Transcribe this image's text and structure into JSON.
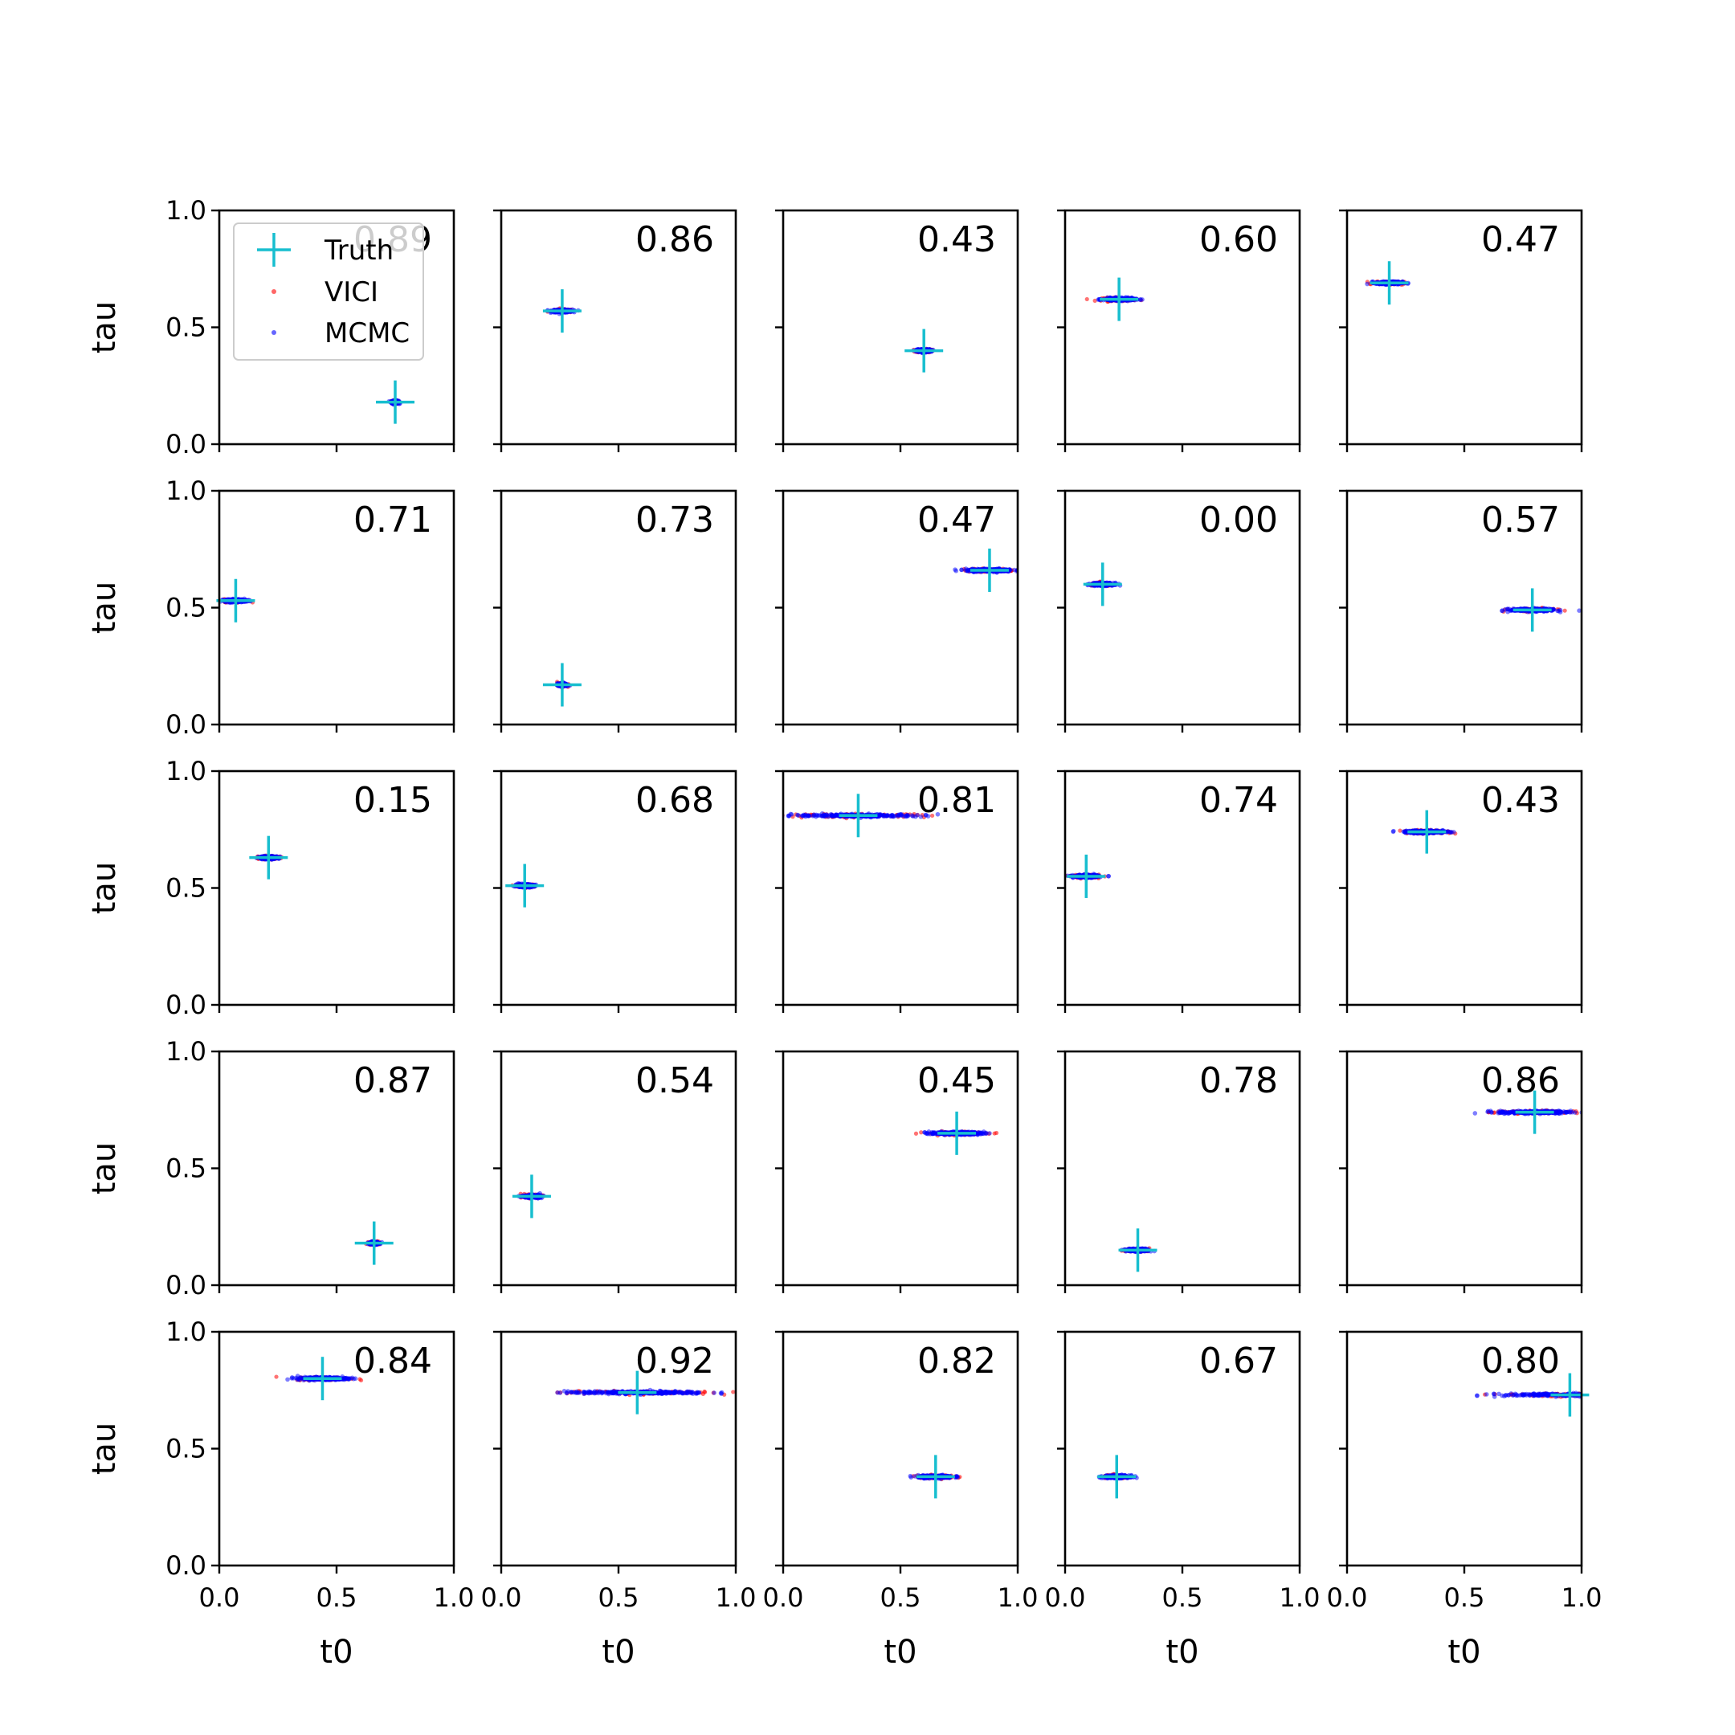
{
  "colors": {
    "truth": "#17becf",
    "vici": "#ff0000",
    "mcmc": "#0000ff",
    "axes": "#000000",
    "legend_border": "#cccccc"
  },
  "legend": {
    "placement": "upper-left of first panel",
    "entries": [
      {
        "label": "Truth",
        "marker": "plus-icon",
        "color": "#17becf"
      },
      {
        "label": "VICI",
        "marker": "dot-icon",
        "color": "#ff0000"
      },
      {
        "label": "MCMC",
        "marker": "dot-icon",
        "color": "#0000ff"
      }
    ]
  },
  "chart_data": {
    "type": "scatter",
    "layout": "5x5 grid of scatter panels",
    "xlabel": "t0",
    "ylabel": "tau",
    "xlim": [
      0,
      1
    ],
    "ylim": [
      0,
      1
    ],
    "xticks": [
      "0.0",
      "0.5",
      "1.0"
    ],
    "yticks": [
      "0.0",
      "0.5",
      "1.0"
    ],
    "grid": false,
    "series_names": [
      "Truth",
      "VICI",
      "MCMC"
    ],
    "panels": [
      {
        "score": "0.89",
        "truth": [
          0.75,
          0.18
        ],
        "spread": 0.045
      },
      {
        "score": "0.86",
        "truth": [
          0.26,
          0.57
        ],
        "spread": 0.13
      },
      {
        "score": "0.43",
        "truth": [
          0.6,
          0.4
        ],
        "spread": 0.09
      },
      {
        "score": "0.60",
        "truth": [
          0.23,
          0.62
        ],
        "spread": 0.2
      },
      {
        "score": "0.47",
        "truth": [
          0.18,
          0.69
        ],
        "spread": 0.17
      },
      {
        "score": "0.71",
        "truth": [
          0.07,
          0.53
        ],
        "spread": 0.14
      },
      {
        "score": "0.73",
        "truth": [
          0.26,
          0.17
        ],
        "spread": 0.06
      },
      {
        "score": "0.47",
        "truth": [
          0.88,
          0.66
        ],
        "spread": 0.3
      },
      {
        "score": "0.00",
        "truth": [
          0.16,
          0.6
        ],
        "spread": 0.14
      },
      {
        "score": "0.57",
        "truth": [
          0.79,
          0.49
        ],
        "spread": 0.28
      },
      {
        "score": "0.15",
        "truth": [
          0.21,
          0.63
        ],
        "spread": 0.12
      },
      {
        "score": "0.68",
        "truth": [
          0.1,
          0.51
        ],
        "spread": 0.12
      },
      {
        "score": "0.81",
        "truth": [
          0.32,
          0.81
        ],
        "spread": 0.82
      },
      {
        "score": "0.74",
        "truth": [
          0.09,
          0.55
        ],
        "spread": 0.16
      },
      {
        "score": "0.43",
        "truth": [
          0.34,
          0.74
        ],
        "spread": 0.28
      },
      {
        "score": "0.87",
        "truth": [
          0.66,
          0.18
        ],
        "spread": 0.06
      },
      {
        "score": "0.54",
        "truth": [
          0.13,
          0.38
        ],
        "spread": 0.11
      },
      {
        "score": "0.45",
        "truth": [
          0.74,
          0.65
        ],
        "spread": 0.34
      },
      {
        "score": "0.78",
        "truth": [
          0.31,
          0.15
        ],
        "spread": 0.14
      },
      {
        "score": "0.86",
        "truth": [
          0.8,
          0.74
        ],
        "spread": 0.46
      },
      {
        "score": "0.84",
        "truth": [
          0.44,
          0.8
        ],
        "spread": 0.32
      },
      {
        "score": "0.92",
        "truth": [
          0.58,
          0.74
        ],
        "spread": 0.9
      },
      {
        "score": "0.82",
        "truth": [
          0.65,
          0.38
        ],
        "spread": 0.22
      },
      {
        "score": "0.67",
        "truth": [
          0.22,
          0.38
        ],
        "spread": 0.16
      },
      {
        "score": "0.80",
        "truth": [
          0.95,
          0.73
        ],
        "spread": 0.86
      }
    ]
  }
}
